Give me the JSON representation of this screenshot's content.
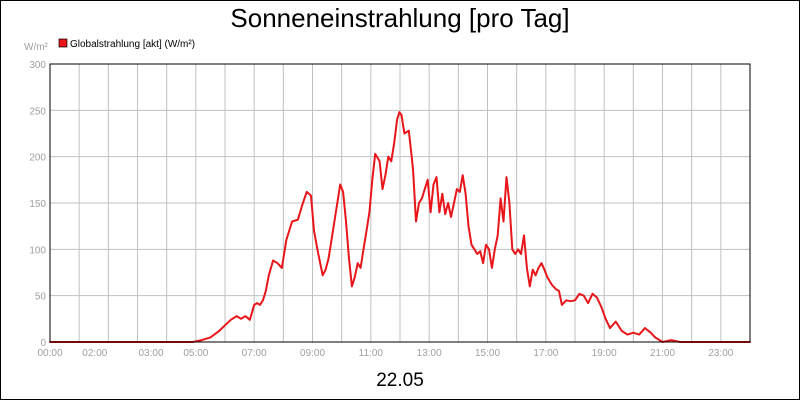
{
  "chart_data": {
    "type": "line",
    "title": "Sonneneinstrahlung [pro Tag]",
    "date": "22.05",
    "ylabel": "W/m²",
    "ylim": [
      0,
      300
    ],
    "yticks": [
      "0",
      "50",
      "100",
      "150",
      "200",
      "250",
      "300"
    ],
    "xlim": [
      0,
      24
    ],
    "xticks": [
      {
        "x": 0,
        "label": "00:00"
      },
      {
        "x": 2,
        "label": "02:00"
      },
      {
        "x": 3,
        "label": "03:00"
      },
      {
        "x": 5,
        "label": "05:00"
      },
      {
        "x": 7,
        "label": "07:00"
      },
      {
        "x": 9,
        "label": "09:00"
      },
      {
        "x": 11,
        "label": "11:00"
      },
      {
        "x": 13,
        "label": "13:00"
      },
      {
        "x": 15,
        "label": "15:00"
      },
      {
        "x": 17,
        "label": "17:00"
      },
      {
        "x": 19,
        "label": "19:00"
      },
      {
        "x": 21,
        "label": "21:00"
      },
      {
        "x": 23,
        "label": "23:00"
      }
    ],
    "grid": true,
    "legend_position": "top-left",
    "series": [
      {
        "name": "Globalstrahlung [akt] (W/m²)",
        "color": "#e8161a",
        "x": [
          0,
          4.9,
          5.2,
          5.5,
          5.8,
          6.0,
          6.2,
          6.4,
          6.55,
          6.7,
          6.85,
          7.0,
          7.1,
          7.2,
          7.3,
          7.4,
          7.5,
          7.65,
          7.8,
          7.95,
          8.1,
          8.3,
          8.5,
          8.65,
          8.8,
          8.95,
          9.05,
          9.2,
          9.35,
          9.45,
          9.55,
          9.65,
          9.75,
          9.85,
          9.95,
          10.05,
          10.15,
          10.25,
          10.35,
          10.45,
          10.55,
          10.65,
          10.75,
          10.85,
          10.95,
          11.05,
          11.15,
          11.3,
          11.4,
          11.5,
          11.6,
          11.7,
          11.8,
          11.9,
          11.98,
          12.05,
          12.15,
          12.3,
          12.4,
          12.45,
          12.55,
          12.65,
          12.75,
          12.85,
          12.95,
          13.05,
          13.15,
          13.25,
          13.35,
          13.45,
          13.55,
          13.65,
          13.75,
          13.85,
          13.95,
          14.05,
          14.15,
          14.25,
          14.35,
          14.45,
          14.55,
          14.65,
          14.75,
          14.85,
          14.95,
          15.05,
          15.15,
          15.25,
          15.35,
          15.45,
          15.55,
          15.65,
          15.75,
          15.85,
          15.95,
          16.05,
          16.15,
          16.25,
          16.35,
          16.45,
          16.55,
          16.65,
          16.75,
          16.85,
          16.95,
          17.05,
          17.2,
          17.35,
          17.45,
          17.55,
          17.7,
          17.85,
          18.0,
          18.15,
          18.3,
          18.45,
          18.6,
          18.75,
          18.9,
          19.05,
          19.2,
          19.4,
          19.6,
          19.8,
          20.0,
          20.2,
          20.4,
          20.6,
          20.75,
          20.9,
          21.0,
          21.3,
          21.6,
          22.0,
          24.0
        ],
        "values": [
          0,
          0,
          2,
          5,
          12,
          18,
          24,
          28,
          25,
          28,
          24,
          40,
          42,
          40,
          45,
          55,
          72,
          88,
          85,
          80,
          110,
          130,
          132,
          148,
          162,
          158,
          120,
          95,
          72,
          78,
          90,
          110,
          130,
          150,
          170,
          162,
          130,
          90,
          60,
          70,
          85,
          80,
          100,
          120,
          140,
          175,
          203,
          195,
          165,
          180,
          200,
          195,
          215,
          240,
          248,
          245,
          225,
          228,
          200,
          185,
          130,
          150,
          155,
          165,
          175,
          140,
          170,
          178,
          140,
          160,
          138,
          150,
          135,
          150,
          165,
          162,
          180,
          160,
          125,
          105,
          100,
          95,
          98,
          85,
          105,
          100,
          80,
          100,
          115,
          155,
          130,
          178,
          150,
          100,
          95,
          100,
          95,
          115,
          80,
          60,
          78,
          72,
          80,
          85,
          78,
          70,
          62,
          57,
          55,
          40,
          45,
          44,
          45,
          52,
          50,
          42,
          52,
          48,
          38,
          25,
          15,
          22,
          12,
          8,
          10,
          8,
          15,
          10,
          5,
          2,
          0,
          2,
          0,
          0,
          0
        ]
      }
    ]
  }
}
